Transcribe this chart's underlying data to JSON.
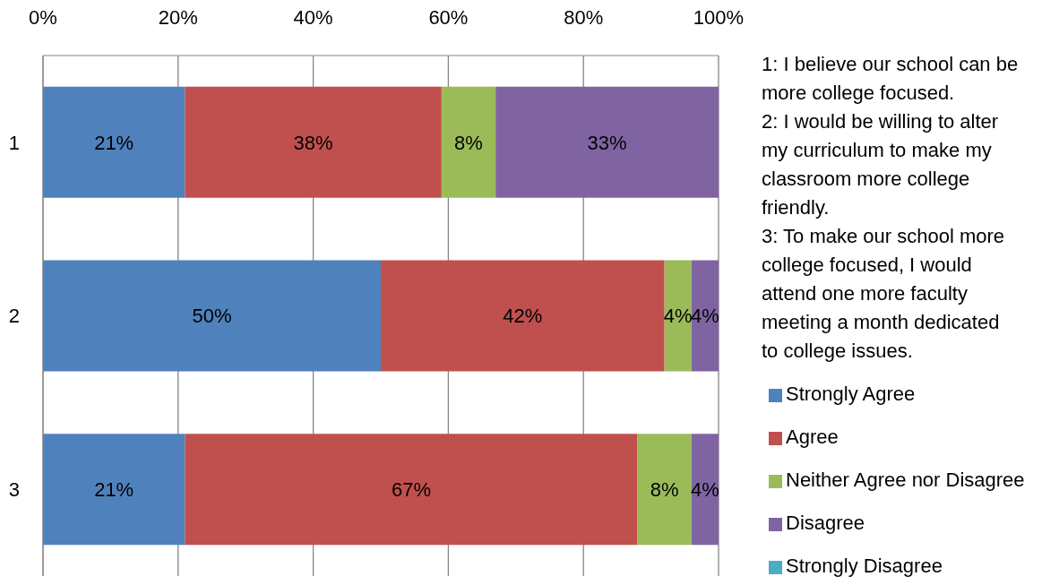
{
  "chart_data": {
    "type": "bar",
    "orientation": "horizontal",
    "stacked": true,
    "categories": [
      "1",
      "2",
      "3"
    ],
    "series": [
      {
        "name": "Strongly Agree",
        "color": "#4f81bd",
        "values": [
          21,
          50,
          21
        ],
        "value_labels": [
          "21%",
          "50%",
          "21%"
        ]
      },
      {
        "name": "Agree",
        "color": "#c0504d",
        "values": [
          38,
          42,
          67
        ],
        "value_labels": [
          "38%",
          "42%",
          "67%"
        ]
      },
      {
        "name": "Neither Agree nor Disagree",
        "color": "#9bbb59",
        "values": [
          8,
          4,
          8
        ],
        "value_labels": [
          "8%",
          "4%",
          "8%"
        ]
      },
      {
        "name": "Disagree",
        "color": "#8064a2",
        "values": [
          33,
          4,
          4
        ],
        "value_labels": [
          "33%",
          "4%",
          "4%"
        ]
      },
      {
        "name": "Strongly Disagree",
        "color": "#4bacc6",
        "values": [
          null,
          null,
          null
        ]
      }
    ],
    "xlim": [
      0,
      100
    ],
    "xticks": [
      {
        "value": 0,
        "label": "0%"
      },
      {
        "value": 20,
        "label": "20%"
      },
      {
        "value": 40,
        "label": "40%"
      },
      {
        "value": 60,
        "label": "60%"
      },
      {
        "value": 80,
        "label": "80%"
      },
      {
        "value": 100,
        "label": "100%"
      }
    ],
    "grid": "x",
    "legend": "right",
    "annotations": [
      "1: I believe our school can be more college focused.",
      "2: I would be willing to alter my curriculum to make my classroom more college friendly.",
      "3: To make our school more college focused, I would attend one more faculty meeting a month dedicated to college issues."
    ]
  }
}
